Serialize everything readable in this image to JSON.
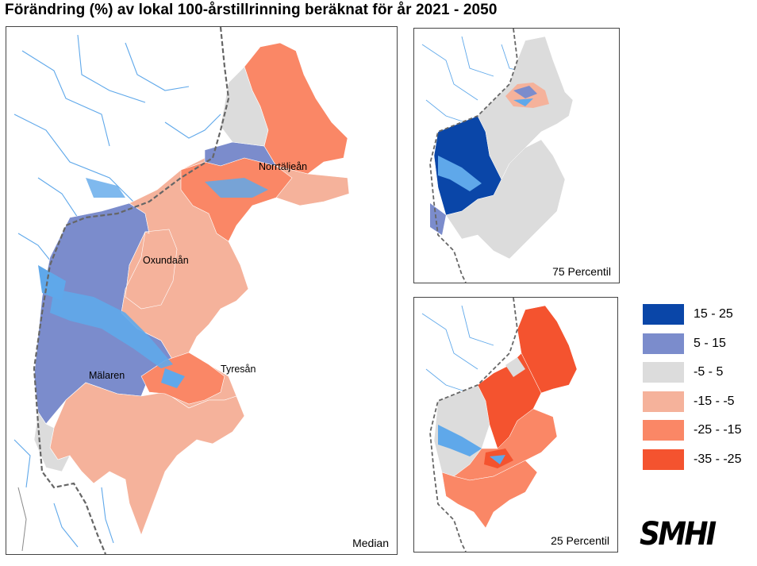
{
  "title": "Förändring (%) av lokal 100-årstillrinning beräknat för år 2021 - 2050",
  "panels": {
    "median": {
      "label": "Median"
    },
    "p75": {
      "label": "75 Percentil"
    },
    "p25": {
      "label": "25 Percentil"
    }
  },
  "places": {
    "norrtaljean": "Norrtäljeån",
    "oxundaan": "Oxundaån",
    "malaren": "Mälaren",
    "tyresan": "Tyresån"
  },
  "legend": [
    {
      "label": "15 - 25",
      "color": "#0a46a8"
    },
    {
      "label": "5 - 15",
      "color": "#7b8ccc"
    },
    {
      "label": "-5 - 5",
      "color": "#dcdcdc"
    },
    {
      "label": "-15 - -5",
      "color": "#f5b29b"
    },
    {
      "label": "-25 - -15",
      "color": "#fa8766"
    },
    {
      "label": "-35 - -25",
      "color": "#f4532f"
    }
  ],
  "colors": {
    "water": "#5fa8ea",
    "border": "#666666",
    "river": "#5fa8ea"
  },
  "logo": "SMHI"
}
